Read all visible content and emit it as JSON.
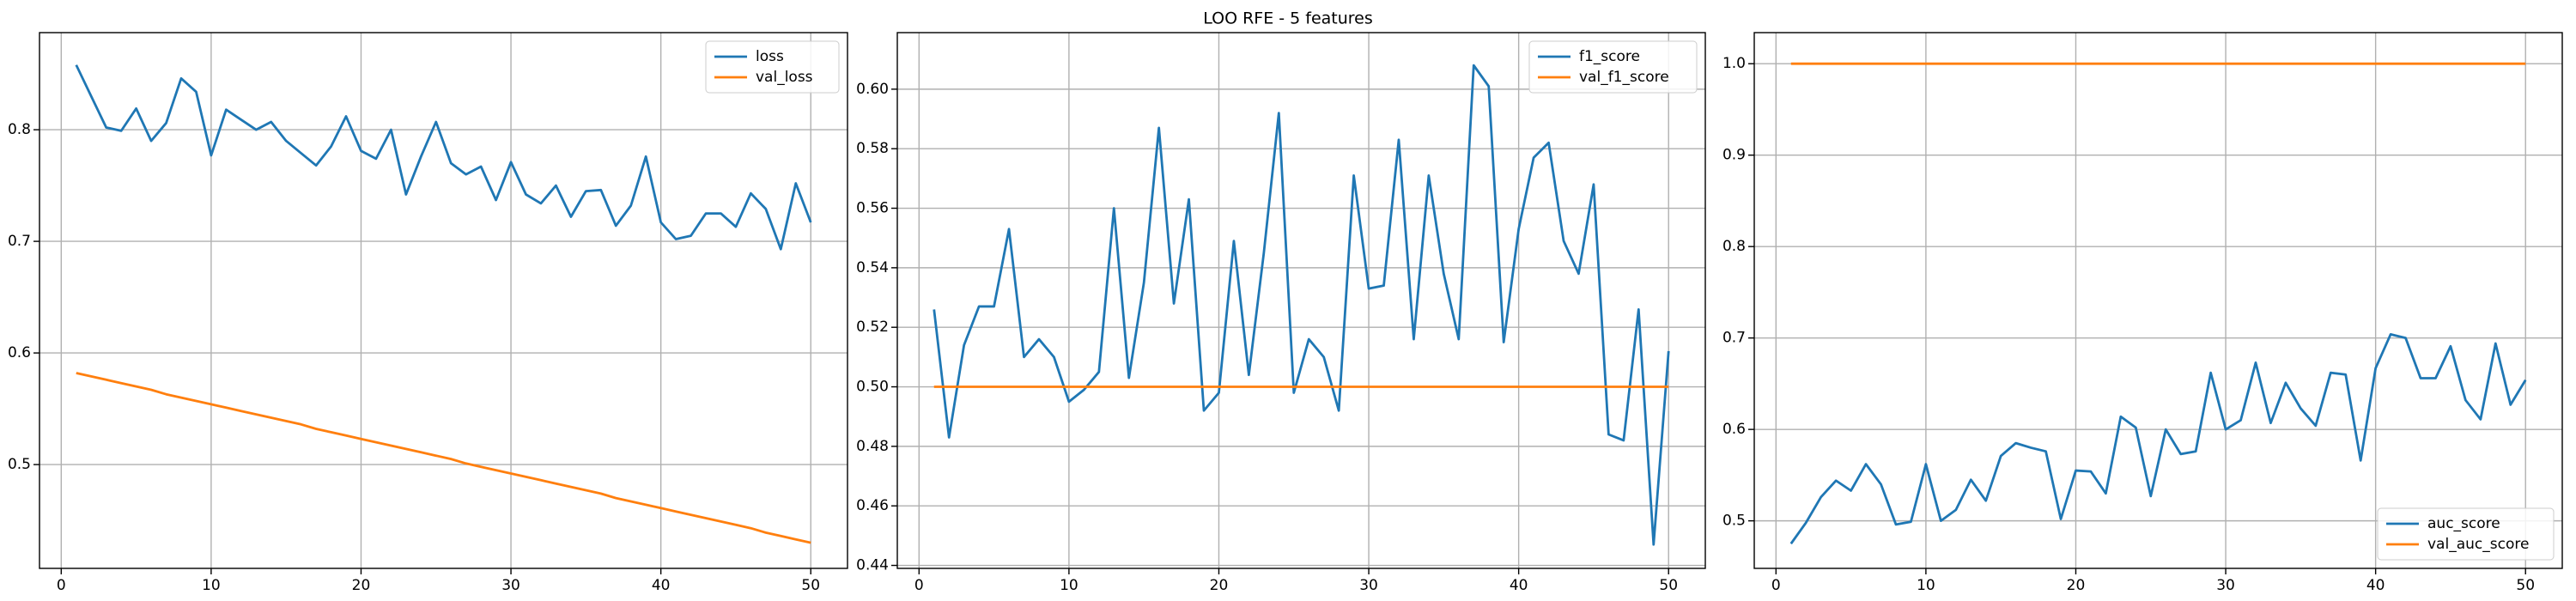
{
  "title": "LOO RFE - 5 features",
  "chart_data": [
    {
      "type": "line",
      "x": [
        1,
        2,
        3,
        4,
        5,
        6,
        7,
        8,
        9,
        10,
        11,
        12,
        13,
        14,
        15,
        16,
        17,
        18,
        19,
        20,
        21,
        22,
        23,
        24,
        25,
        26,
        27,
        28,
        29,
        30,
        31,
        32,
        33,
        34,
        35,
        36,
        37,
        38,
        39,
        40,
        41,
        42,
        43,
        44,
        45,
        46,
        47,
        48,
        49,
        50
      ],
      "series": [
        {
          "name": "loss",
          "color": "#1f77b4",
          "values": [
            0.858,
            0.83,
            0.802,
            0.799,
            0.819,
            0.79,
            0.806,
            0.846,
            0.834,
            0.777,
            0.818,
            0.809,
            0.8,
            0.807,
            0.79,
            0.779,
            0.768,
            0.785,
            0.812,
            0.781,
            0.774,
            0.8,
            0.742,
            0.776,
            0.807,
            0.77,
            0.76,
            0.767,
            0.737,
            0.771,
            0.742,
            0.734,
            0.75,
            0.722,
            0.745,
            0.746,
            0.714,
            0.732,
            0.776,
            0.717,
            0.702,
            0.705,
            0.725,
            0.725,
            0.713,
            0.743,
            0.729,
            0.693,
            0.752,
            0.717
          ]
        },
        {
          "name": "val_loss",
          "color": "#ff7f0e",
          "values": [
            0.582,
            0.579,
            0.576,
            0.573,
            0.57,
            0.567,
            0.563,
            0.56,
            0.557,
            0.554,
            0.551,
            0.548,
            0.545,
            0.542,
            0.539,
            0.536,
            0.532,
            0.529,
            0.526,
            0.523,
            0.52,
            0.517,
            0.514,
            0.511,
            0.508,
            0.505,
            0.501,
            0.498,
            0.495,
            0.492,
            0.489,
            0.486,
            0.483,
            0.48,
            0.477,
            0.474,
            0.47,
            0.467,
            0.464,
            0.461,
            0.458,
            0.455,
            0.452,
            0.449,
            0.446,
            0.443,
            0.439,
            0.436,
            0.433,
            0.43
          ]
        }
      ],
      "xlim": [
        -1.45,
        52.45
      ],
      "xticks": [
        0,
        10,
        20,
        30,
        40,
        50
      ],
      "ylim": [
        0.407,
        0.887
      ],
      "yticks": [
        0.5,
        0.6,
        0.7,
        0.8
      ],
      "grid": true,
      "legend": "upper right"
    },
    {
      "type": "line",
      "x": [
        1,
        2,
        3,
        4,
        5,
        6,
        7,
        8,
        9,
        10,
        11,
        12,
        13,
        14,
        15,
        16,
        17,
        18,
        19,
        20,
        21,
        22,
        23,
        24,
        25,
        26,
        27,
        28,
        29,
        30,
        31,
        32,
        33,
        34,
        35,
        36,
        37,
        38,
        39,
        40,
        41,
        42,
        43,
        44,
        45,
        46,
        47,
        48,
        49,
        50
      ],
      "series": [
        {
          "name": "f1_score",
          "color": "#1f77b4",
          "values": [
            0.526,
            0.483,
            0.514,
            0.527,
            0.527,
            0.553,
            0.51,
            0.516,
            0.51,
            0.495,
            0.499,
            0.505,
            0.56,
            0.503,
            0.535,
            0.587,
            0.528,
            0.563,
            0.492,
            0.498,
            0.549,
            0.504,
            0.545,
            0.592,
            0.498,
            0.516,
            0.51,
            0.492,
            0.571,
            0.533,
            0.534,
            0.583,
            0.516,
            0.571,
            0.538,
            0.516,
            0.608,
            0.601,
            0.515,
            0.553,
            0.577,
            0.582,
            0.549,
            0.538,
            0.568,
            0.484,
            0.482,
            0.526,
            0.447,
            0.512
          ]
        },
        {
          "name": "val_f1_score",
          "color": "#ff7f0e",
          "values": [
            0.5,
            0.5,
            0.5,
            0.5,
            0.5,
            0.5,
            0.5,
            0.5,
            0.5,
            0.5,
            0.5,
            0.5,
            0.5,
            0.5,
            0.5,
            0.5,
            0.5,
            0.5,
            0.5,
            0.5,
            0.5,
            0.5,
            0.5,
            0.5,
            0.5,
            0.5,
            0.5,
            0.5,
            0.5,
            0.5,
            0.5,
            0.5,
            0.5,
            0.5,
            0.5,
            0.5,
            0.5,
            0.5,
            0.5,
            0.5,
            0.5,
            0.5,
            0.5,
            0.5,
            0.5,
            0.5,
            0.5,
            0.5,
            0.5,
            0.5
          ]
        }
      ],
      "xlim": [
        -1.45,
        52.45
      ],
      "xticks": [
        0,
        10,
        20,
        30,
        40,
        50
      ],
      "ylim": [
        0.439,
        0.619
      ],
      "yticks": [
        0.44,
        0.46,
        0.48,
        {
          "value": 0.5,
          "label": "0.50"
        },
        0.52,
        0.54,
        0.56,
        0.58,
        {
          "value": 0.6,
          "label": "0.60"
        }
      ],
      "grid": true,
      "legend": "upper right"
    },
    {
      "type": "line",
      "x": [
        1,
        2,
        3,
        4,
        5,
        6,
        7,
        8,
        9,
        10,
        11,
        12,
        13,
        14,
        15,
        16,
        17,
        18,
        19,
        20,
        21,
        22,
        23,
        24,
        25,
        26,
        27,
        28,
        29,
        30,
        31,
        32,
        33,
        34,
        35,
        36,
        37,
        38,
        39,
        40,
        41,
        42,
        43,
        44,
        45,
        46,
        47,
        48,
        49,
        50
      ],
      "series": [
        {
          "name": "auc_score",
          "color": "#1f77b4",
          "values": [
            0.475,
            0.498,
            0.526,
            0.544,
            0.533,
            0.562,
            0.54,
            0.496,
            0.499,
            0.562,
            0.5,
            0.512,
            0.545,
            0.522,
            0.571,
            0.585,
            0.58,
            0.576,
            0.502,
            0.555,
            0.554,
            0.53,
            0.614,
            0.602,
            0.527,
            0.6,
            0.573,
            0.576,
            0.662,
            0.6,
            0.61,
            0.673,
            0.607,
            0.651,
            0.623,
            0.604,
            0.662,
            0.66,
            0.566,
            0.667,
            0.704,
            0.7,
            0.656,
            0.656,
            0.691,
            0.632,
            0.611,
            0.694,
            0.627,
            0.654
          ]
        },
        {
          "name": "val_auc_score",
          "color": "#ff7f0e",
          "values": [
            1,
            1,
            1,
            1,
            1,
            1,
            1,
            1,
            1,
            1,
            1,
            1,
            1,
            1,
            1,
            1,
            1,
            1,
            1,
            1,
            1,
            1,
            1,
            1,
            1,
            1,
            1,
            1,
            1,
            1,
            1,
            1,
            1,
            1,
            1,
            1,
            1,
            1,
            1,
            1,
            1,
            1,
            1,
            1,
            1,
            1,
            1,
            1,
            1,
            1
          ]
        }
      ],
      "xlim": [
        -1.45,
        52.45
      ],
      "xticks": [
        0,
        10,
        20,
        30,
        40,
        50
      ],
      "ylim": [
        0.448,
        1.034
      ],
      "yticks": [
        0.5,
        0.6,
        0.7,
        0.8,
        0.9,
        {
          "value": 1,
          "label": "1.0"
        }
      ],
      "grid": true,
      "legend": "lower right"
    }
  ]
}
